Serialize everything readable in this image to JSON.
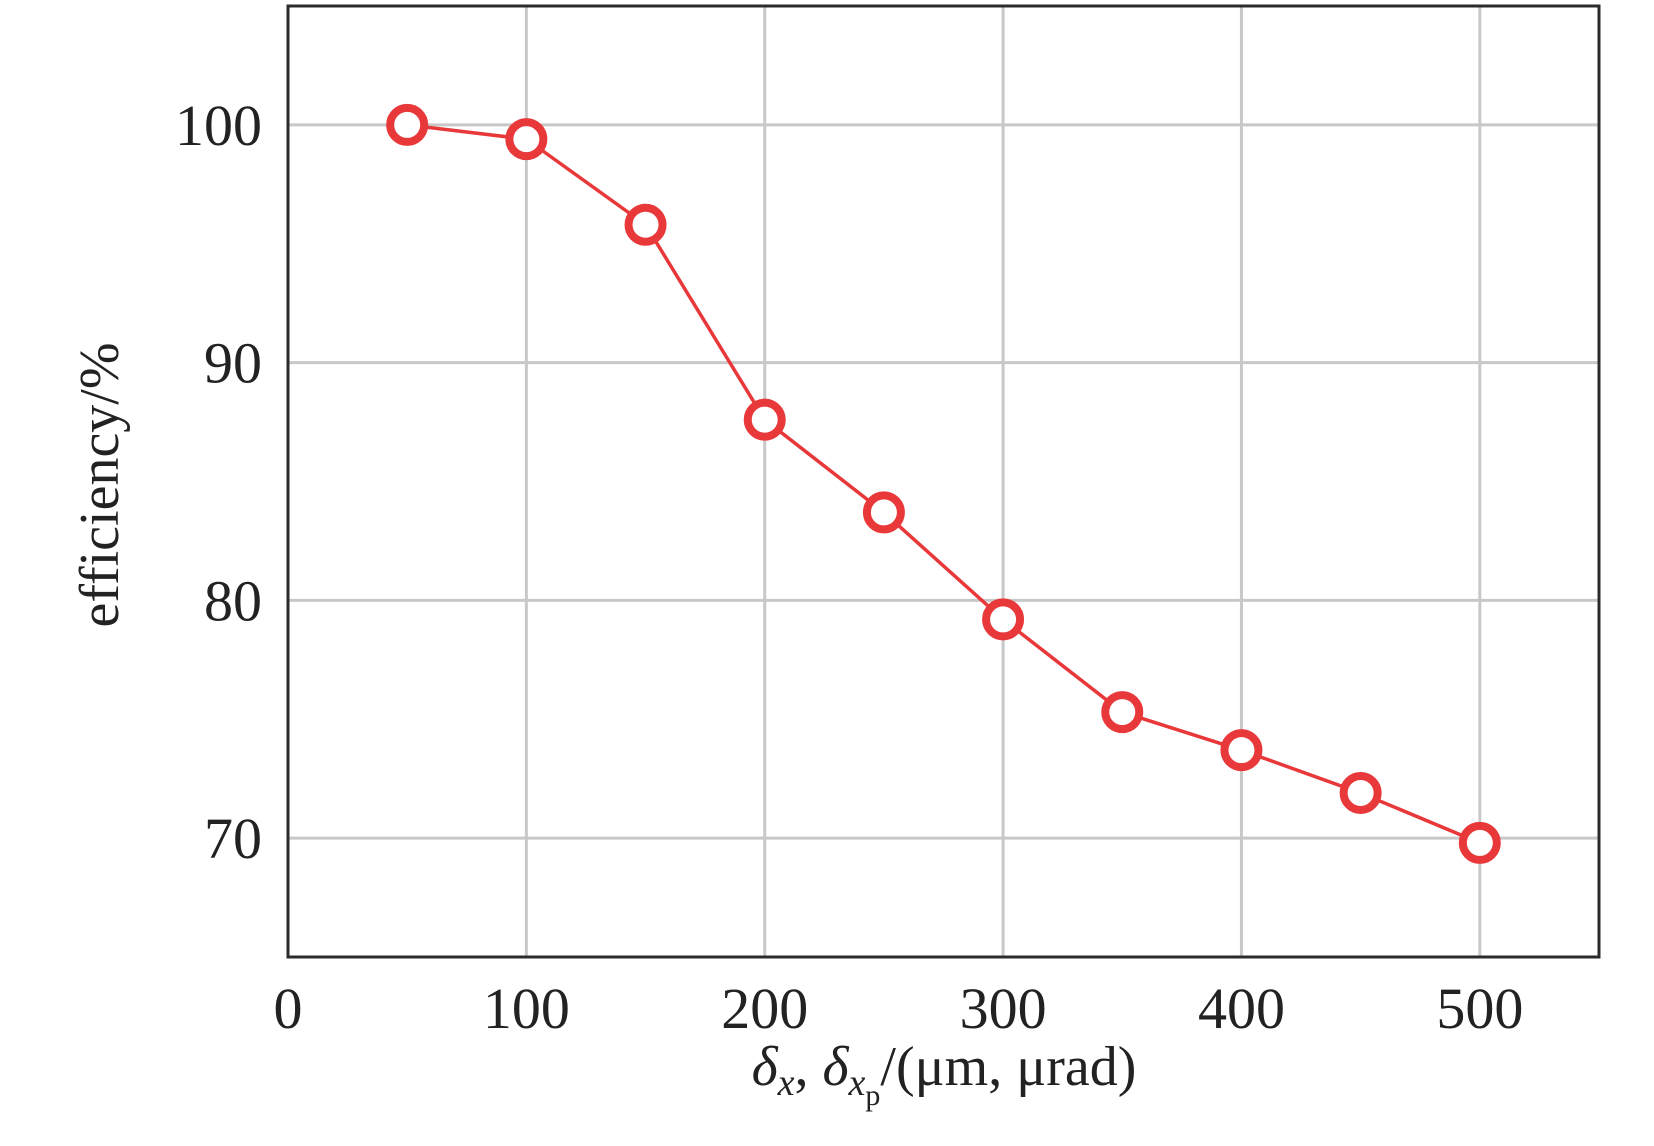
{
  "chart_data": {
    "type": "line",
    "title": "",
    "xlabel": {
      "delta": "δ",
      "sub1": "x",
      "sep": ", ",
      "sub2": "x",
      "sub2_sub": "p",
      "units": "/(μm, μrad)"
    },
    "ylabel": "efficiency/%",
    "xlim": [
      0,
      550
    ],
    "ylim": [
      65,
      105
    ],
    "xticks": [
      0,
      100,
      200,
      300,
      400,
      500
    ],
    "yticks": [
      70,
      80,
      90,
      100
    ],
    "grid": true,
    "series": [
      {
        "color": "#e8383a",
        "marker": "open-circle",
        "x": [
          50,
          100,
          150,
          200,
          250,
          300,
          350,
          400,
          450,
          500
        ],
        "y": [
          100,
          99.4,
          95.8,
          87.6,
          83.7,
          79.2,
          75.3,
          73.7,
          71.9,
          69.8
        ]
      }
    ]
  }
}
